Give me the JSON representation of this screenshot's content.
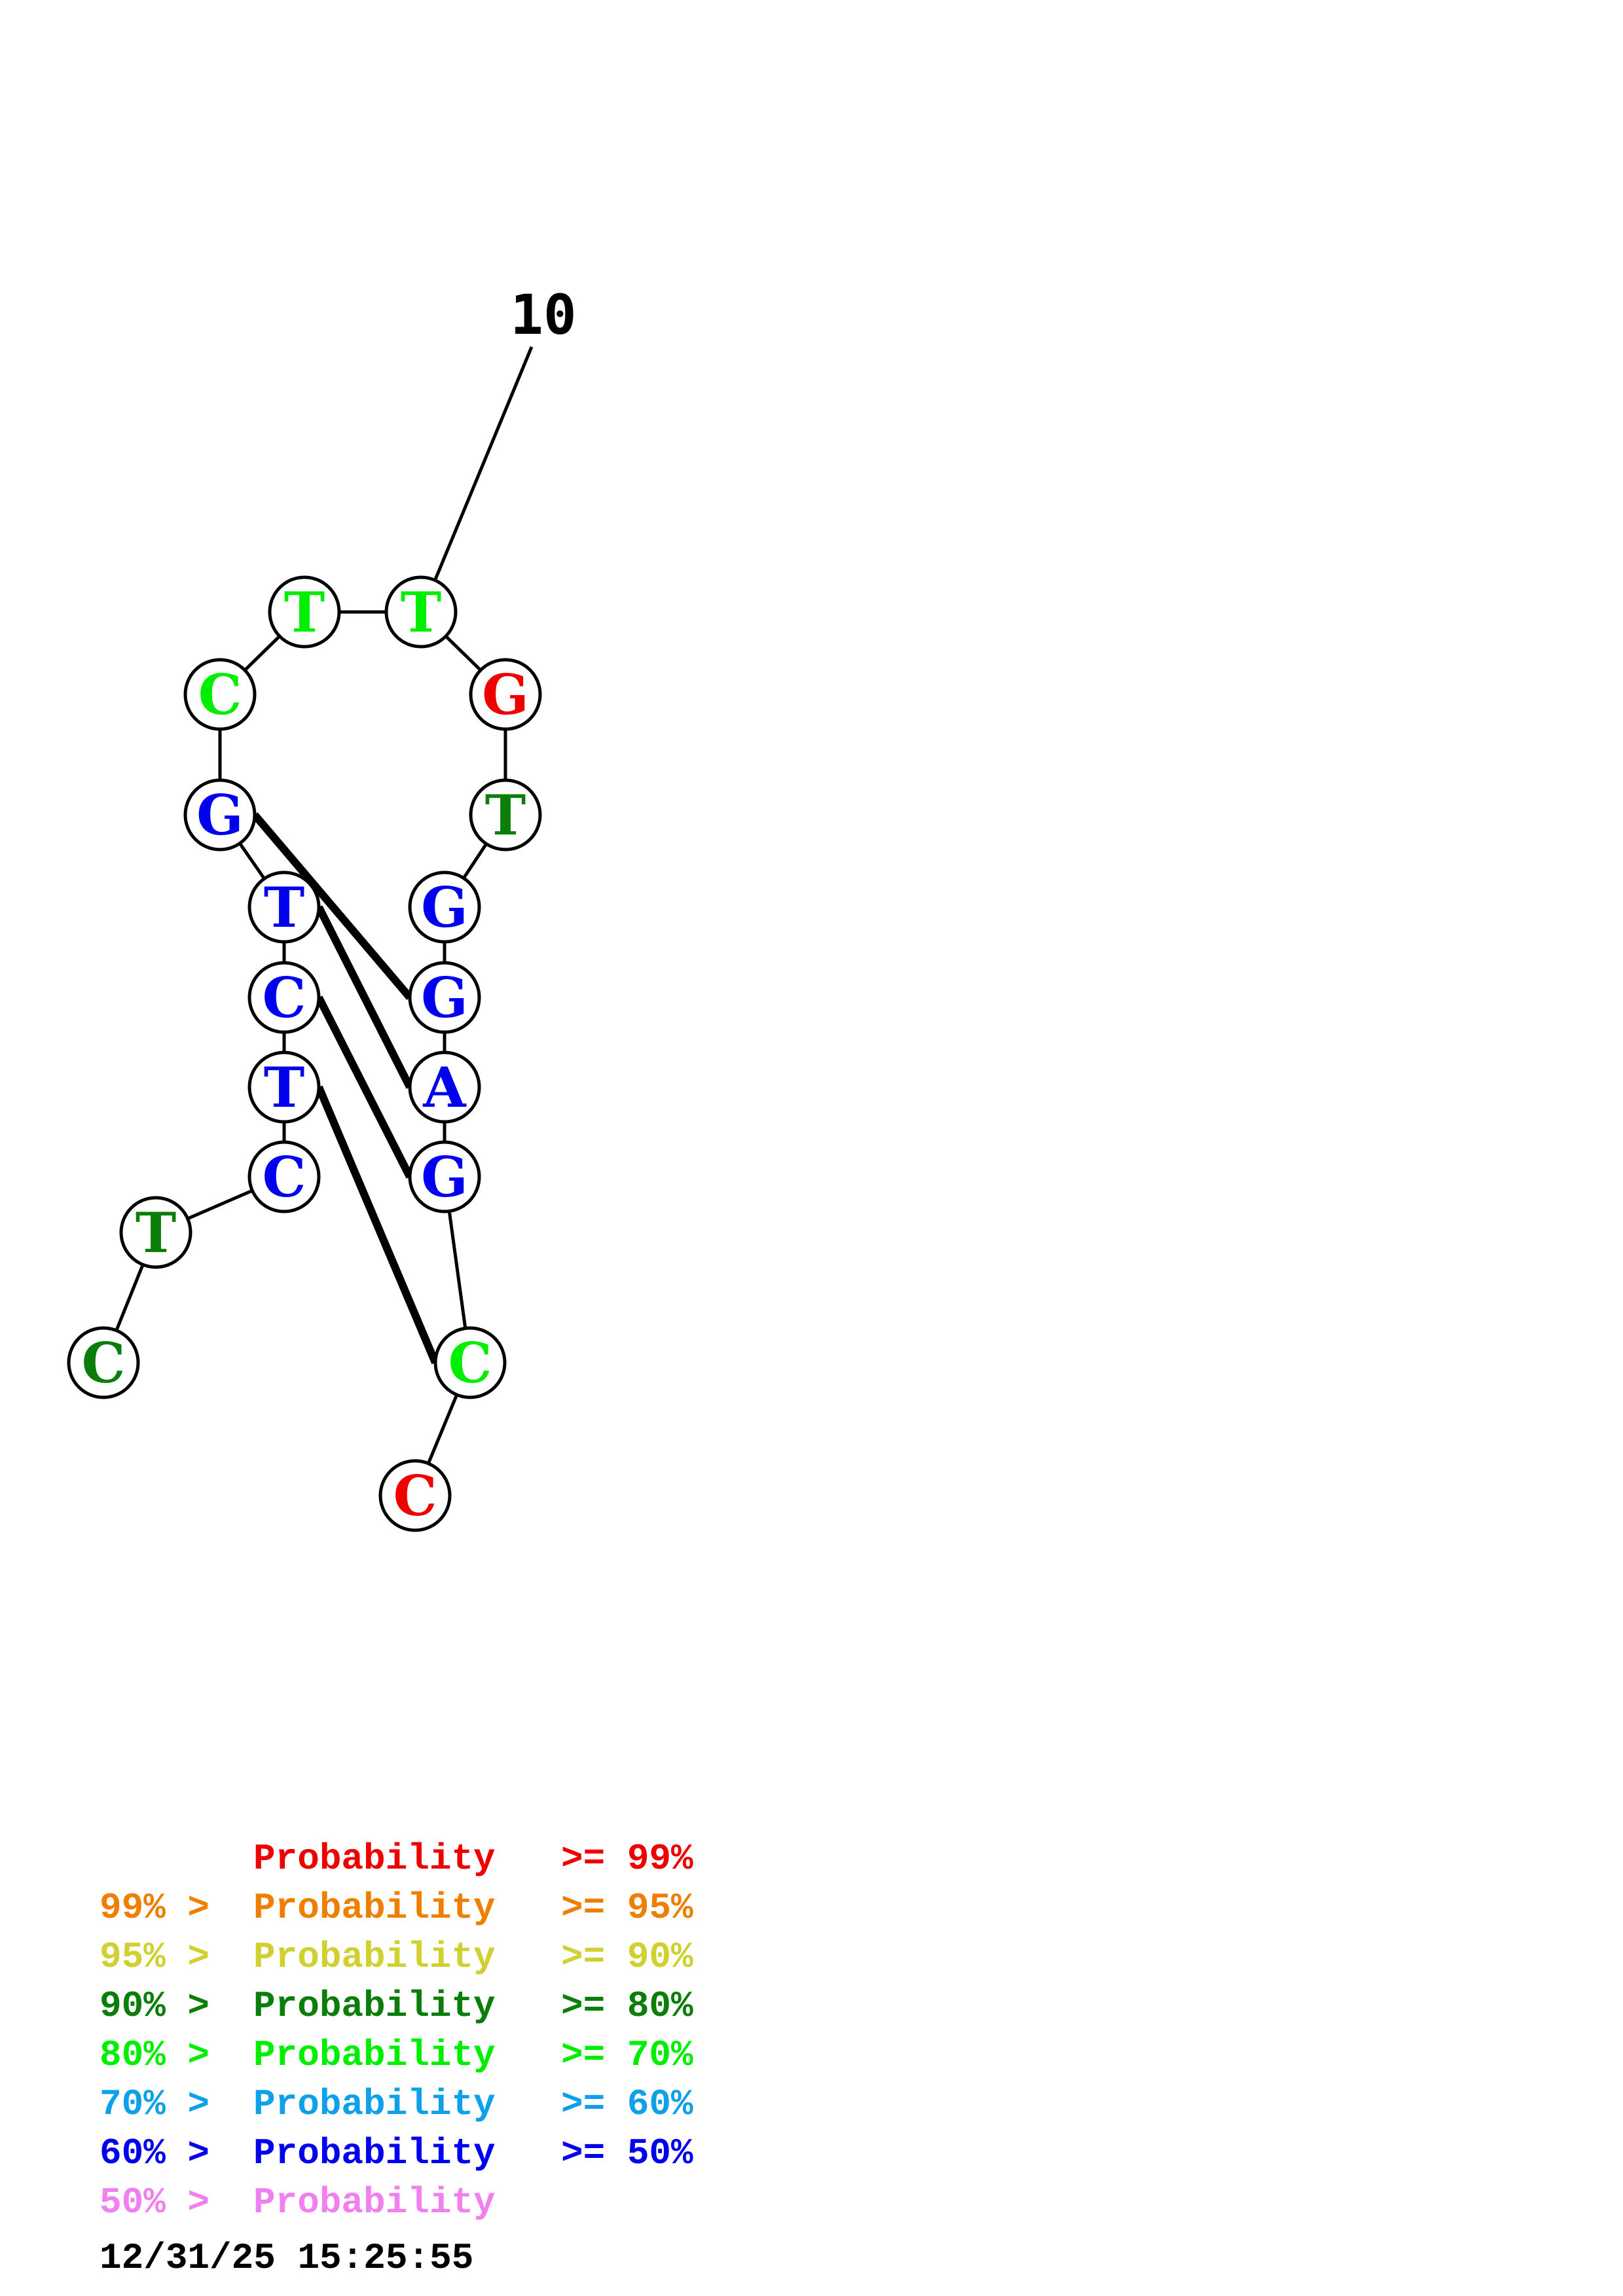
{
  "structure": {
    "nucleotides": [
      {
        "letter": "C",
        "color": "#0a7d0a"
      },
      {
        "letter": "T",
        "color": "#0a7d0a"
      },
      {
        "letter": "C",
        "color": "#0000ee"
      },
      {
        "letter": "T",
        "color": "#0000ee"
      },
      {
        "letter": "C",
        "color": "#0000ee"
      },
      {
        "letter": "T",
        "color": "#0000ee"
      },
      {
        "letter": "G",
        "color": "#0000ee"
      },
      {
        "letter": "C",
        "color": "#00ee00"
      },
      {
        "letter": "T",
        "color": "#00ee00"
      },
      {
        "letter": "T",
        "color": "#00ee00"
      },
      {
        "letter": "G",
        "color": "#ee0000"
      },
      {
        "letter": "T",
        "color": "#0a7d0a"
      },
      {
        "letter": "G",
        "color": "#0000ee"
      },
      {
        "letter": "G",
        "color": "#0000ee"
      },
      {
        "letter": "A",
        "color": "#0000ee"
      },
      {
        "letter": "G",
        "color": "#0000ee"
      },
      {
        "letter": "C",
        "color": "#00ee00"
      },
      {
        "letter": "C",
        "color": "#ee0000"
      }
    ],
    "pairs": [
      [
        3,
        16
      ],
      [
        4,
        15
      ],
      [
        5,
        14
      ],
      [
        6,
        13
      ]
    ],
    "position_label": "10"
  },
  "legend": {
    "rows": [
      {
        "prefix": "",
        "label": "Probability",
        "suffix": ">= 99%",
        "color": "#ee0000"
      },
      {
        "prefix": "99% >",
        "label": "Probability",
        "suffix": ">= 95%",
        "color": "#ee7f00"
      },
      {
        "prefix": "95% >",
        "label": "Probability",
        "suffix": ">= 90%",
        "color": "#d0d030"
      },
      {
        "prefix": "90% >",
        "label": "Probability",
        "suffix": ">= 80%",
        "color": "#0a7d0a"
      },
      {
        "prefix": "80% >",
        "label": "Probability",
        "suffix": ">= 70%",
        "color": "#00ee00"
      },
      {
        "prefix": "70% >",
        "label": "Probability",
        "suffix": ">= 60%",
        "color": "#0ea0e8"
      },
      {
        "prefix": "60% >",
        "label": "Probability",
        "suffix": ">= 50%",
        "color": "#0000ee"
      },
      {
        "prefix": "50% >",
        "label": "Probability",
        "suffix": "",
        "color": "#f080f0"
      }
    ],
    "timestamp": "12/31/25 15:25:55"
  }
}
